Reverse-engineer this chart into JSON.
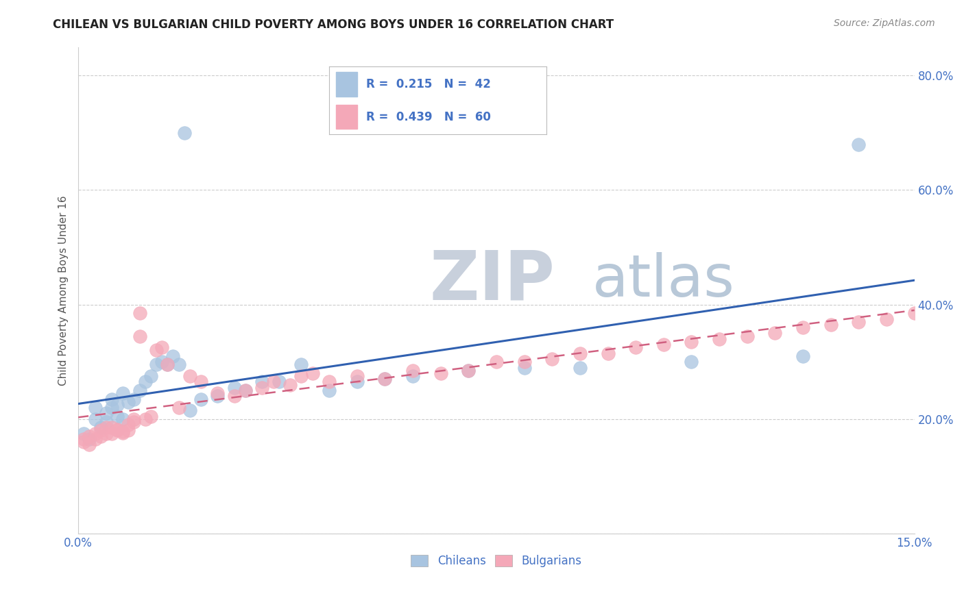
{
  "title": "CHILEAN VS BULGARIAN CHILD POVERTY AMONG BOYS UNDER 16 CORRELATION CHART",
  "source_text": "Source: ZipAtlas.com",
  "ylabel": "Child Poverty Among Boys Under 16",
  "xlim": [
    0.0,
    0.15
  ],
  "ylim": [
    0.0,
    0.85
  ],
  "xticks": [
    0.0,
    0.025,
    0.05,
    0.075,
    0.1,
    0.125,
    0.15
  ],
  "xticklabels": [
    "0.0%",
    "",
    "",
    "",
    "",
    "",
    "15.0%"
  ],
  "yticks": [
    0.0,
    0.2,
    0.4,
    0.6,
    0.8
  ],
  "yticklabels": [
    "",
    "20.0%",
    "40.0%",
    "60.0%",
    "80.0%"
  ],
  "chilean_color": "#a8c4e0",
  "bulgarian_color": "#f4a8b8",
  "chilean_line_color": "#3060b0",
  "bulgarian_line_color": "#d06080",
  "legend_R_chilean": "0.215",
  "legend_N_chilean": "42",
  "legend_R_bulgarian": "0.439",
  "legend_N_bulgarian": "60",
  "watermark_ZIP": "ZIP",
  "watermark_atlas": "atlas",
  "watermark_ZIP_color": "#c8d0dc",
  "watermark_atlas_color": "#b8c8d8",
  "chilean_scatter_x": [
    0.001,
    0.002,
    0.003,
    0.003,
    0.004,
    0.005,
    0.005,
    0.006,
    0.006,
    0.007,
    0.007,
    0.008,
    0.008,
    0.009,
    0.01,
    0.011,
    0.012,
    0.013,
    0.014,
    0.015,
    0.016,
    0.017,
    0.018,
    0.019,
    0.02,
    0.022,
    0.025,
    0.028,
    0.03,
    0.033,
    0.036,
    0.04,
    0.045,
    0.05,
    0.055,
    0.06,
    0.07,
    0.08,
    0.09,
    0.11,
    0.13,
    0.14
  ],
  "chilean_scatter_y": [
    0.175,
    0.165,
    0.2,
    0.22,
    0.185,
    0.195,
    0.21,
    0.22,
    0.235,
    0.205,
    0.225,
    0.245,
    0.2,
    0.23,
    0.235,
    0.25,
    0.265,
    0.275,
    0.295,
    0.3,
    0.295,
    0.31,
    0.295,
    0.7,
    0.215,
    0.235,
    0.24,
    0.255,
    0.25,
    0.265,
    0.265,
    0.295,
    0.25,
    0.265,
    0.27,
    0.275,
    0.285,
    0.29,
    0.29,
    0.3,
    0.31,
    0.68
  ],
  "bulgarian_scatter_x": [
    0.001,
    0.001,
    0.002,
    0.002,
    0.003,
    0.003,
    0.004,
    0.004,
    0.005,
    0.005,
    0.006,
    0.006,
    0.007,
    0.007,
    0.008,
    0.008,
    0.009,
    0.009,
    0.01,
    0.01,
    0.011,
    0.011,
    0.012,
    0.013,
    0.014,
    0.015,
    0.016,
    0.018,
    0.02,
    0.022,
    0.025,
    0.028,
    0.03,
    0.033,
    0.035,
    0.038,
    0.04,
    0.042,
    0.045,
    0.05,
    0.055,
    0.06,
    0.065,
    0.07,
    0.075,
    0.08,
    0.085,
    0.09,
    0.095,
    0.1,
    0.105,
    0.11,
    0.115,
    0.12,
    0.125,
    0.13,
    0.135,
    0.14,
    0.145,
    0.15
  ],
  "bulgarian_scatter_y": [
    0.165,
    0.16,
    0.155,
    0.17,
    0.165,
    0.175,
    0.17,
    0.18,
    0.175,
    0.185,
    0.175,
    0.185,
    0.18,
    0.182,
    0.178,
    0.176,
    0.19,
    0.18,
    0.195,
    0.2,
    0.385,
    0.345,
    0.2,
    0.205,
    0.32,
    0.325,
    0.295,
    0.22,
    0.275,
    0.265,
    0.245,
    0.24,
    0.25,
    0.255,
    0.265,
    0.26,
    0.275,
    0.28,
    0.265,
    0.275,
    0.27,
    0.285,
    0.28,
    0.285,
    0.3,
    0.3,
    0.305,
    0.315,
    0.315,
    0.325,
    0.33,
    0.335,
    0.34,
    0.345,
    0.35,
    0.36,
    0.365,
    0.37,
    0.375,
    0.385
  ],
  "figsize": [
    14.06,
    8.92
  ],
  "dpi": 100
}
